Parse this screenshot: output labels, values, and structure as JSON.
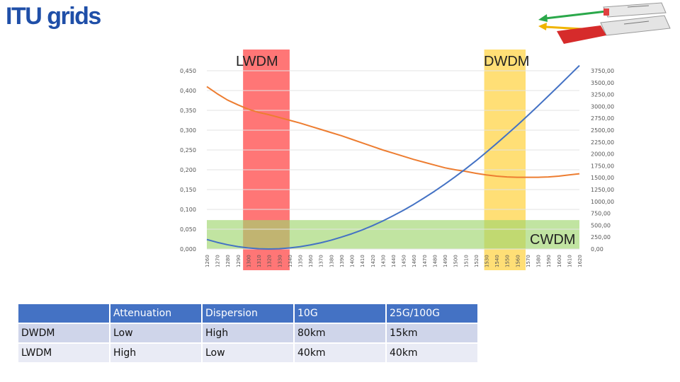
{
  "page": {
    "title": "ITU grids"
  },
  "chart_data": {
    "type": "line",
    "x": [
      1260,
      1270,
      1280,
      1290,
      1300,
      1310,
      1320,
      1330,
      1340,
      1350,
      1360,
      1370,
      1380,
      1390,
      1400,
      1410,
      1420,
      1430,
      1440,
      1450,
      1460,
      1470,
      1480,
      1490,
      1500,
      1510,
      1520,
      1530,
      1540,
      1550,
      1560,
      1570,
      1580,
      1590,
      1600,
      1610,
      1620
    ],
    "x_tick_labels": [
      "1260",
      "1270",
      "1280",
      "1290",
      "1300",
      "1310",
      "1320",
      "1330",
      "1340",
      "1350",
      "1360",
      "1370",
      "1380",
      "1390",
      "1400",
      "1410",
      "1420",
      "1430",
      "1440",
      "1450",
      "1460",
      "1470",
      "1480",
      "1490",
      "1500",
      "1510",
      "1520",
      "1530",
      "1540",
      "1550",
      "1560",
      "1570",
      "1580",
      "1590",
      "1600",
      "1610",
      "1620"
    ],
    "y_left_ticks": [
      "0,000",
      "0,050",
      "0,100",
      "0,150",
      "0,200",
      "0,250",
      "0,300",
      "0,350",
      "0,400",
      "0,450"
    ],
    "y_right_ticks": [
      "0,00",
      "250,00",
      "500,00",
      "750,00",
      "1000,00",
      "1250,00",
      "1500,00",
      "1750,00",
      "2000,00",
      "2250,00",
      "2500,00",
      "2750,00",
      "3000,00",
      "3250,00",
      "3500,00",
      "3750,00"
    ],
    "ylim_left": [
      0,
      0.45
    ],
    "ylim_right": [
      0,
      3750
    ],
    "series": [
      {
        "axis": "left",
        "color": "#ed7d31",
        "values": [
          0.41,
          0.392,
          0.376,
          0.364,
          0.353,
          0.345,
          0.339,
          0.332,
          0.325,
          0.318,
          0.31,
          0.302,
          0.294,
          0.286,
          0.277,
          0.268,
          0.259,
          0.25,
          0.242,
          0.234,
          0.226,
          0.219,
          0.212,
          0.205,
          0.2,
          0.196,
          0.191,
          0.187,
          0.184,
          0.182,
          0.181,
          0.181,
          0.181,
          0.182,
          0.184,
          0.187,
          0.19
        ]
      },
      {
        "axis": "right",
        "color": "#4472c4",
        "values": [
          200,
          140,
          90,
          50,
          22,
          6,
          0,
          6,
          22,
          48,
          85,
          130,
          185,
          250,
          320,
          400,
          490,
          590,
          700,
          815,
          940,
          1075,
          1215,
          1365,
          1520,
          1685,
          1855,
          2035,
          2220,
          2410,
          2605,
          2805,
          3010,
          3220,
          3430,
          3645,
          3860
        ]
      }
    ],
    "bands": [
      {
        "label": "LWDM",
        "x_range": [
          1295,
          1340
        ],
        "color": "#ff2d2d"
      },
      {
        "label": "DWDM",
        "x_range": [
          1528,
          1568
        ],
        "color": "#ffd23c"
      },
      {
        "label": "CWDM",
        "y_range_left": [
          0,
          0.073
        ],
        "color": "#9fd56f"
      }
    ],
    "highlight_ticks": [
      {
        "values": [
          1290,
          1300,
          1310,
          1320,
          1330,
          1340
        ],
        "color": "#cc2222"
      },
      {
        "values": [
          1530,
          1540,
          1550,
          1560,
          1570,
          1580
        ],
        "color": "#e6a800"
      }
    ]
  },
  "table": {
    "headers": [
      "",
      "Attenuation",
      "Dispersion",
      "10G",
      "25G/100G"
    ],
    "rows": [
      [
        "DWDM",
        "Low",
        "High",
        "80km",
        "15km"
      ],
      [
        "LWDM",
        "High",
        "Low",
        "40km",
        "40km"
      ]
    ]
  }
}
